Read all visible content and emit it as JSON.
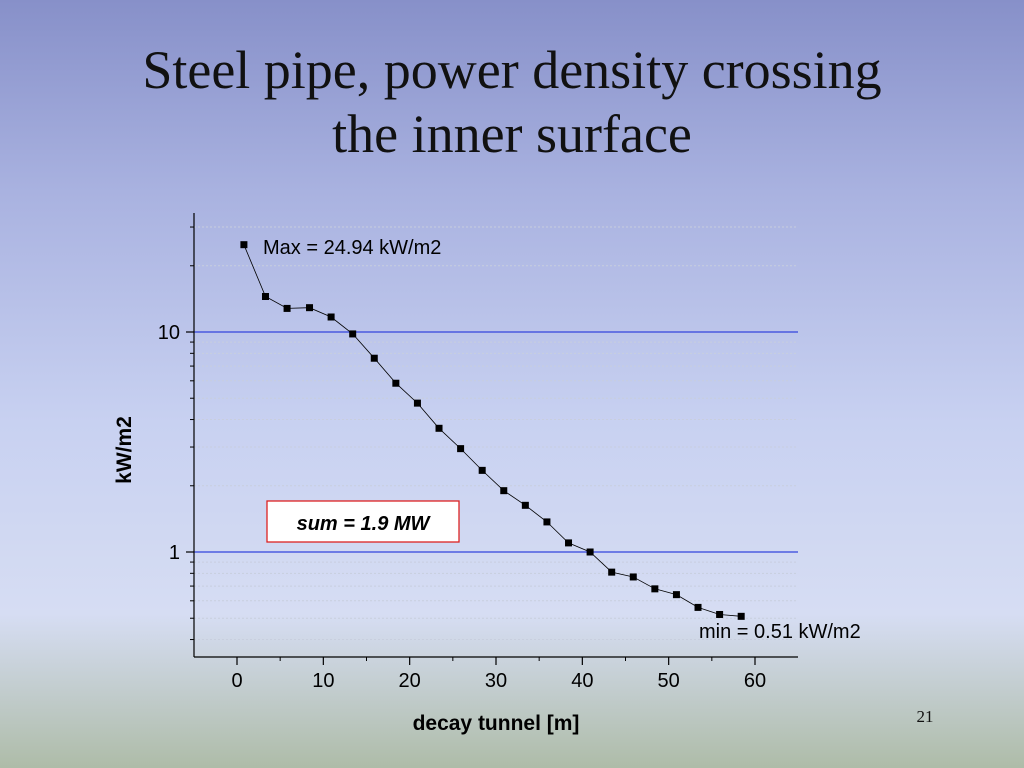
{
  "slide": {
    "title_line1": "Steel pipe, power density crossing",
    "title_line2": "the inner surface",
    "page_number": "21"
  },
  "chart_data": {
    "type": "scatter",
    "xlabel": "decay tunnel [m]",
    "ylabel": "kW/m2",
    "x_ticks": [
      0,
      10,
      20,
      30,
      40,
      50,
      60
    ],
    "y_major_ticks": [
      1,
      10
    ],
    "y_scale": "log",
    "xlim": [
      -5,
      65
    ],
    "ylim": [
      0.37,
      33
    ],
    "reference_lines_y": [
      1,
      10
    ],
    "grid": "horizontal minor",
    "series": [
      {
        "marker": "square",
        "line": "solid thin",
        "color": "#000000",
        "points": [
          {
            "x": 0.8,
            "y": 24.94
          },
          {
            "x": 3.3,
            "y": 14.5
          },
          {
            "x": 5.8,
            "y": 12.8
          },
          {
            "x": 8.4,
            "y": 12.9
          },
          {
            "x": 10.9,
            "y": 11.7
          },
          {
            "x": 13.4,
            "y": 9.8
          },
          {
            "x": 15.9,
            "y": 7.6
          },
          {
            "x": 18.4,
            "y": 5.85
          },
          {
            "x": 20.9,
            "y": 4.75
          },
          {
            "x": 23.4,
            "y": 3.65
          },
          {
            "x": 25.9,
            "y": 2.95
          },
          {
            "x": 28.4,
            "y": 2.35
          },
          {
            "x": 30.9,
            "y": 1.9
          },
          {
            "x": 33.4,
            "y": 1.63
          },
          {
            "x": 35.9,
            "y": 1.37
          },
          {
            "x": 38.4,
            "y": 1.1
          },
          {
            "x": 40.9,
            "y": 1.0
          },
          {
            "x": 43.4,
            "y": 0.81
          },
          {
            "x": 45.9,
            "y": 0.77
          },
          {
            "x": 48.4,
            "y": 0.68
          },
          {
            "x": 50.9,
            "y": 0.64
          },
          {
            "x": 53.4,
            "y": 0.56
          },
          {
            "x": 55.9,
            "y": 0.52
          },
          {
            "x": 58.4,
            "y": 0.51
          }
        ]
      }
    ],
    "annotations": {
      "max": "Max = 24.94 kW/m2",
      "min": "min = 0.51 kW/m2",
      "sum": "sum = 1.9 MW"
    },
    "colors": {
      "ref_line": "#3344dd",
      "sum_box_border": "#dd2222",
      "grid": "#c8cede"
    }
  }
}
